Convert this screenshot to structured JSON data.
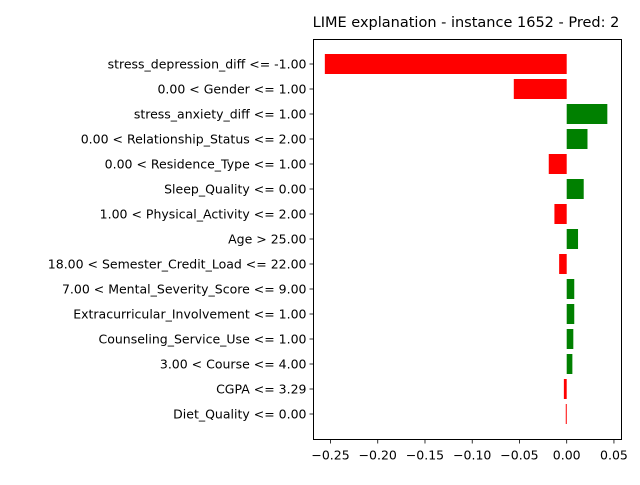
{
  "chart_data": {
    "type": "bar",
    "orientation": "horizontal",
    "title": "LIME explanation - instance 1652 - Pred: 2",
    "xlabel": "",
    "ylabel": "",
    "xlim": [
      -0.268,
      0.058
    ],
    "xticks": [
      -0.25,
      -0.2,
      -0.15,
      -0.1,
      -0.05,
      0.0,
      0.05
    ],
    "xtick_labels": [
      "−0.25",
      "−0.20",
      "−0.15",
      "−0.10",
      "−0.05",
      "0.00",
      "0.05"
    ],
    "grid": false,
    "positive_color": "#008000",
    "negative_color": "#ff0000",
    "categories": [
      "stress_depression_diff <= -1.00",
      "0.00 < Gender <= 1.00",
      "stress_anxiety_diff <= 1.00",
      "0.00 < Relationship_Status <= 2.00",
      "0.00 < Residence_Type <= 1.00",
      "Sleep_Quality <= 0.00",
      "1.00 < Physical_Activity <= 2.00",
      "Age > 25.00",
      "18.00 < Semester_Credit_Load <= 22.00",
      "7.00 < Mental_Severity_Score <= 9.00",
      "Extracurricular_Involvement <= 1.00",
      "Counseling_Service_Use <= 1.00",
      "3.00 < Course <= 4.00",
      "CGPA <= 3.29",
      "Diet_Quality <= 0.00"
    ],
    "values": [
      -0.256,
      -0.056,
      0.043,
      0.022,
      -0.019,
      0.018,
      -0.013,
      0.012,
      -0.008,
      0.008,
      0.008,
      0.007,
      0.006,
      -0.003,
      -0.001
    ]
  }
}
